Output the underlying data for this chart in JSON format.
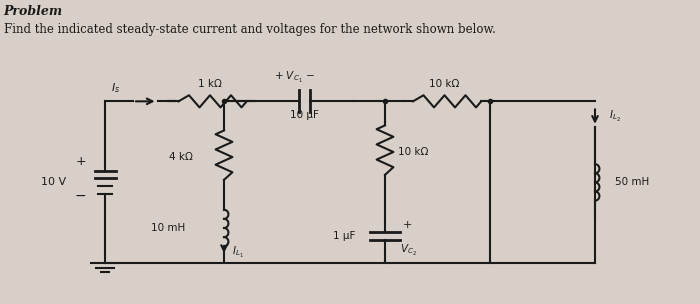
{
  "title_line1": "Problem",
  "title_line2": "Find the indicated steady-state current and voltages for the network shown below.",
  "bg_color": "#d8d0c8",
  "text_color": "#1a1a1a",
  "circuit_color": "#1a1a1a",
  "components": {
    "voltage_source": "10 V",
    "R1": "1 kΩ",
    "R2": "4 kΩ",
    "R3": "10 kΩ",
    "R4": "10 kΩ",
    "C1": "10 μF",
    "C2": "1 μF",
    "L1": "10 mH",
    "L2": "50 mH",
    "Is_label": "Is",
    "IL1_label": "I_{L_1}",
    "IL2_label": "I_{L_2}",
    "Vc1_label": "V_{C_1}",
    "Vc2_label": "V_{C_2}"
  }
}
